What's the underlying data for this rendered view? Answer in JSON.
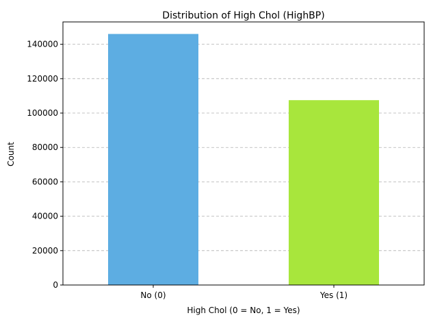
{
  "chart_data": {
    "type": "bar",
    "title": "Distribution of High Chol (HighBP)",
    "xlabel": "High Chol (0 = No, 1 = Yes)",
    "ylabel": "Count",
    "categories": [
      "No (0)",
      "Yes (1)"
    ],
    "values": [
      146000,
      107500
    ],
    "colors": [
      "#5DADE2",
      "#A8E63C"
    ],
    "ylim": [
      0,
      153000
    ],
    "yticks": [
      0,
      20000,
      40000,
      60000,
      80000,
      100000,
      120000,
      140000
    ],
    "grid": "y-dashed",
    "legend": "none"
  }
}
